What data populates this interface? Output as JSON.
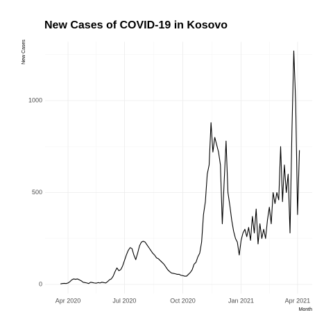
{
  "chart_data": {
    "type": "line",
    "title": "New Cases of COVID-19 in Kosovo",
    "y_label": "New Cases",
    "x_label": "Month",
    "categories": [
      null,
      null,
      null,
      null,
      "Apr 2020",
      null,
      null,
      null,
      null,
      null,
      null,
      null,
      null,
      null,
      null,
      null,
      null,
      null,
      null,
      null,
      null,
      null,
      null,
      null,
      null,
      null,
      null,
      null,
      null,
      null,
      null,
      null,
      null,
      null,
      "Jul 2020",
      null,
      null,
      null,
      null,
      null,
      null,
      null,
      null,
      null,
      null,
      null,
      null,
      null,
      null,
      null,
      null,
      null,
      null,
      null,
      null,
      null,
      null,
      null,
      null,
      null,
      null,
      null,
      null,
      null,
      null,
      "Oct 2020",
      null,
      null,
      null,
      null,
      null,
      null,
      null,
      null,
      null,
      null,
      null,
      null,
      null,
      null,
      null,
      null,
      null,
      null,
      null,
      null,
      null,
      null,
      null,
      null,
      null,
      null,
      null,
      null,
      null,
      null,
      "Jan 2021",
      null,
      null,
      null,
      null,
      null,
      null,
      null,
      null,
      null,
      null,
      null,
      null,
      null,
      null,
      null,
      null,
      null,
      null,
      null,
      null,
      null,
      null,
      null,
      null,
      null,
      null,
      null,
      null,
      null,
      "Apr 2021",
      null
    ],
    "values": [
      3,
      5,
      6,
      5,
      8,
      15,
      25,
      30,
      28,
      30,
      25,
      20,
      12,
      10,
      8,
      5,
      12,
      10,
      8,
      7,
      10,
      8,
      12,
      10,
      8,
      15,
      25,
      30,
      45,
      70,
      90,
      75,
      80,
      100,
      130,
      160,
      185,
      200,
      195,
      160,
      135,
      170,
      210,
      230,
      235,
      230,
      215,
      200,
      185,
      170,
      160,
      145,
      140,
      130,
      120,
      110,
      95,
      80,
      70,
      62,
      60,
      58,
      55,
      55,
      50,
      48,
      45,
      45,
      55,
      65,
      80,
      110,
      120,
      150,
      170,
      230,
      380,
      450,
      600,
      650,
      880,
      720,
      800,
      760,
      720,
      650,
      330,
      560,
      780,
      500,
      430,
      350,
      290,
      250,
      230,
      160,
      240,
      280,
      300,
      260,
      310,
      240,
      370,
      280,
      410,
      220,
      330,
      250,
      300,
      250,
      350,
      420,
      330,
      500,
      440,
      500,
      460,
      750,
      450,
      650,
      500,
      600,
      280,
      830,
      1270,
      990,
      380,
      730
    ],
    "color": "#000000",
    "ylim": [
      -50,
      1320
    ],
    "yticks": [
      0,
      500,
      1000
    ],
    "grid": true
  }
}
